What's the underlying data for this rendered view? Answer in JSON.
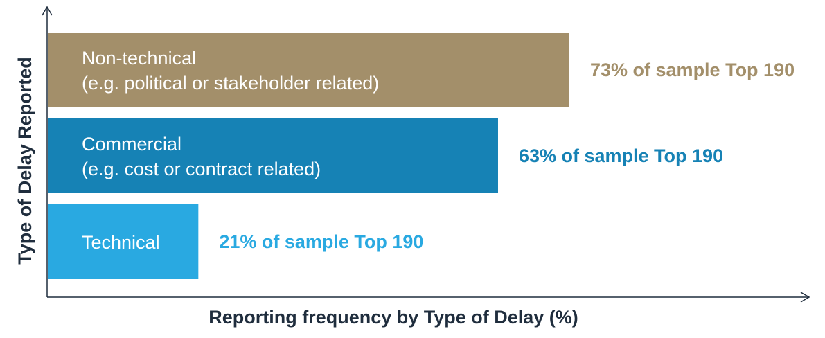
{
  "chart_data": {
    "type": "bar",
    "orientation": "horizontal",
    "categories": [
      "Non-technical",
      "Commercial",
      "Technical"
    ],
    "category_sublabels": [
      "(e.g. political or stakeholder related)",
      "(e.g. cost or contract related)",
      ""
    ],
    "values": [
      73,
      63,
      21
    ],
    "value_labels": [
      "73% of sample Top 190",
      "63% of sample Top 190",
      "21% of sample Top 190"
    ],
    "colors": [
      "#a38f6a",
      "#1682b5",
      "#29a9e1"
    ],
    "title": "",
    "xlabel": "Reporting frequency by Type of Delay (%)",
    "ylabel": "Type of Delay Reported",
    "xlim": [
      0,
      100
    ],
    "grid": false,
    "legend": "none"
  }
}
